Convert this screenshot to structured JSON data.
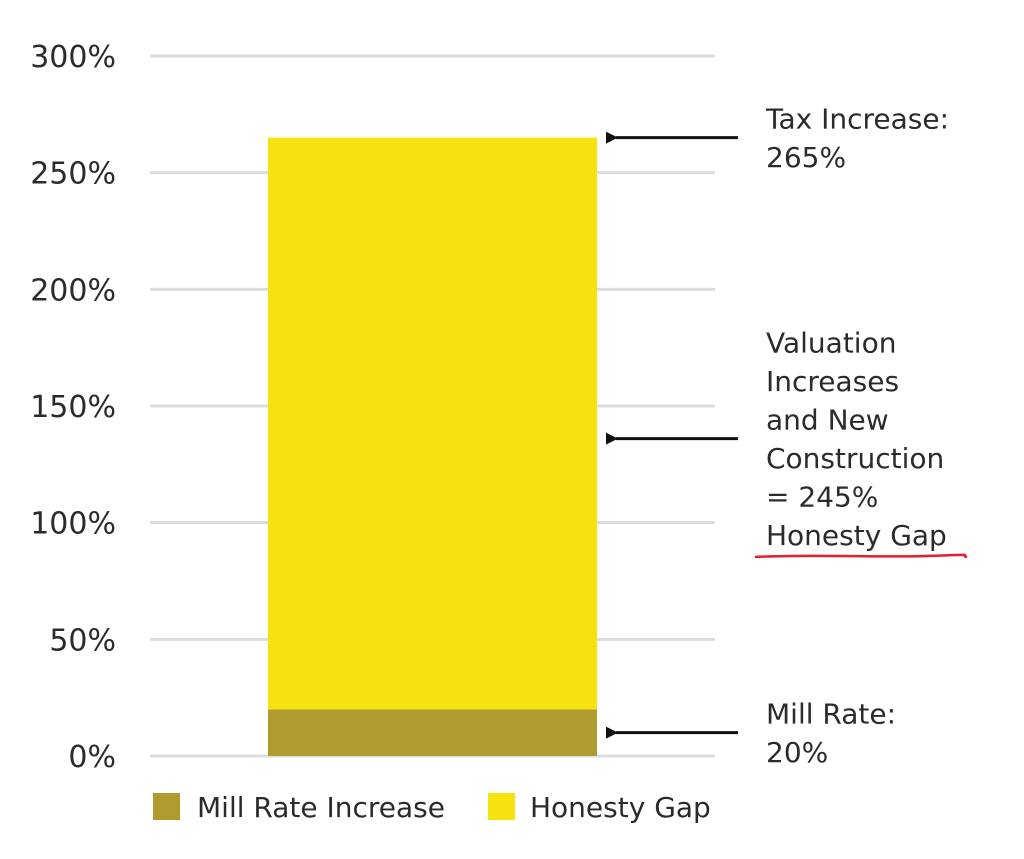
{
  "chart_data": {
    "type": "bar",
    "stacked": true,
    "categories": [
      ""
    ],
    "series": [
      {
        "name": "Mill Rate Increase",
        "values": [
          20
        ],
        "color": "#b09c2e"
      },
      {
        "name": "Honesty Gap",
        "values": [
          245
        ],
        "color": "#f5e20f"
      }
    ],
    "total": 265,
    "ylim": [
      0,
      300
    ],
    "yticks": [
      0,
      50,
      100,
      150,
      200,
      250,
      300
    ],
    "ytick_labels": [
      "0%",
      "50%",
      "100%",
      "150%",
      "200%",
      "250%",
      "300%"
    ],
    "grid": true,
    "gridline_color": "#dcdcdc",
    "legend_placement": "bottom",
    "annotations": [
      {
        "target_value": 265,
        "lines": [
          "Tax Increase:",
          "265%"
        ],
        "underline": false
      },
      {
        "target_value": 136,
        "lines": [
          "Valuation",
          "Increases",
          "and New",
          "Construction",
          "= 245%",
          "Honesty Gap"
        ],
        "underline": true,
        "underline_color": "#e0202a"
      },
      {
        "target_value": 10,
        "lines": [
          "Mill Rate:",
          "20%"
        ],
        "underline": false
      }
    ]
  }
}
